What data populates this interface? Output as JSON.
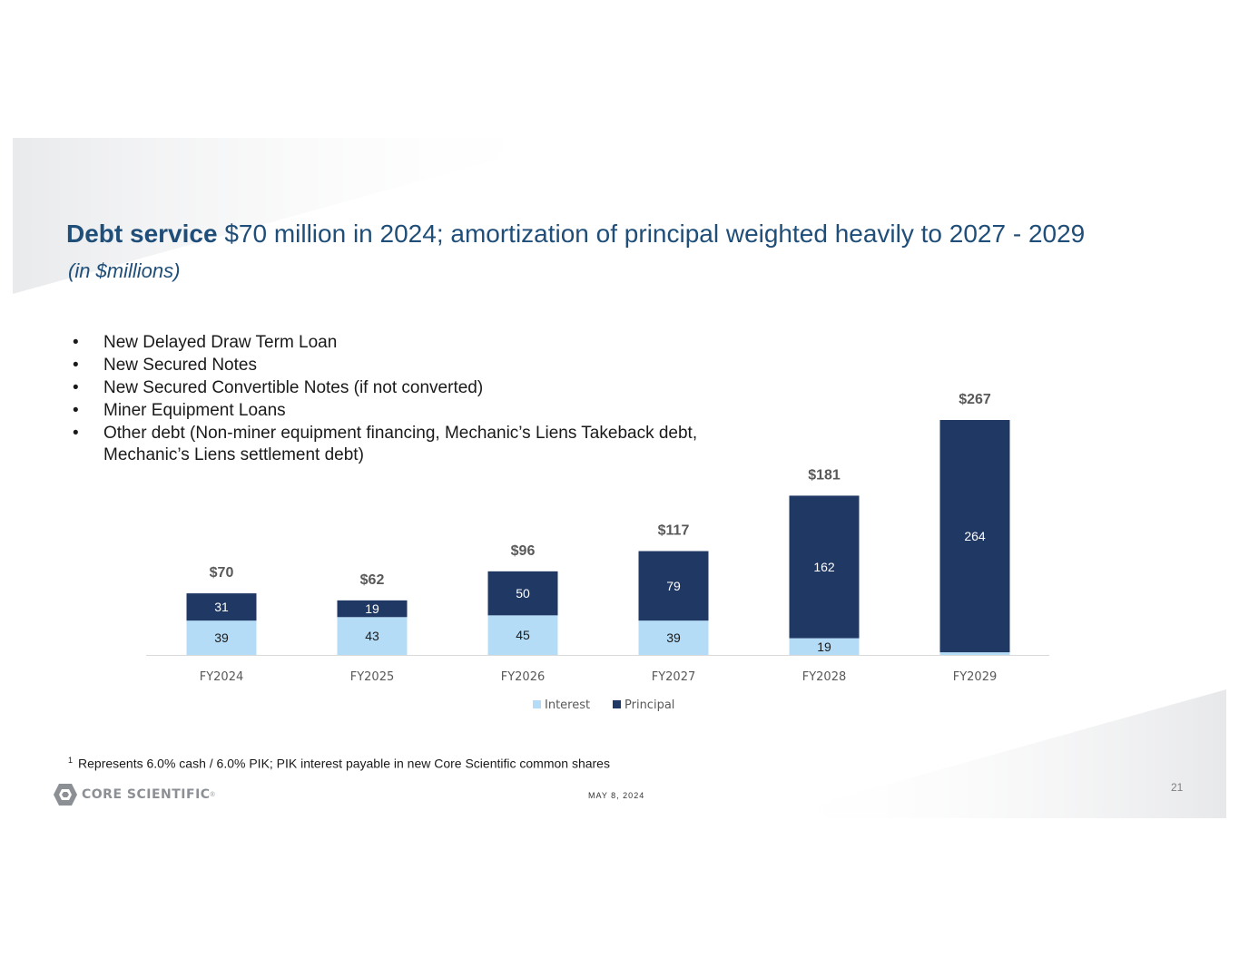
{
  "title": {
    "bold": "Debt service",
    "rest": " $70 million in 2024; amortization of principal weighted heavily to 2027 - 2029"
  },
  "subtitle": "(in $millions)",
  "bullets": [
    "New Delayed Draw Term Loan",
    "New Secured Notes",
    "New Secured Convertible Notes (if not converted)",
    "Miner Equipment Loans",
    "Other debt (Non-miner equipment financing, Mechanic’s Liens Takeback debt, Mechanic’s Liens settlement debt)"
  ],
  "footnote": {
    "marker": "1",
    "text": "Represents 6.0% cash / 6.0% PIK; PIK interest payable in new Core Scientific common shares"
  },
  "logo": {
    "text": "CORE SCIENTIFIC",
    "mark": "®"
  },
  "date": "MAY 8, 2024",
  "page_number": "21",
  "colors": {
    "title": "#1f4e79",
    "interest": "#b4dcf7",
    "principal": "#203864"
  },
  "chart_data": {
    "type": "bar",
    "stacked": true,
    "categories": [
      "FY2024",
      "FY2025",
      "FY2026",
      "FY2027",
      "FY2028",
      "FY2029"
    ],
    "series": [
      {
        "name": "Interest",
        "values": [
          39,
          43,
          45,
          39,
          19,
          3
        ],
        "labels": [
          "39",
          "43",
          "45",
          "39",
          "19",
          ""
        ],
        "color": "#b4dcf7"
      },
      {
        "name": "Principal",
        "values": [
          31,
          19,
          50,
          79,
          162,
          264
        ],
        "labels": [
          "31",
          "19",
          "50",
          "79",
          "162",
          "264"
        ],
        "color": "#203864"
      }
    ],
    "totals": [
      70,
      62,
      96,
      117,
      181,
      267
    ],
    "total_labels": [
      "$70",
      "$62",
      "$96",
      "$117",
      "$181",
      "$267"
    ],
    "ylim": [
      0,
      267
    ],
    "legend": "bottom-center",
    "grid": false
  }
}
